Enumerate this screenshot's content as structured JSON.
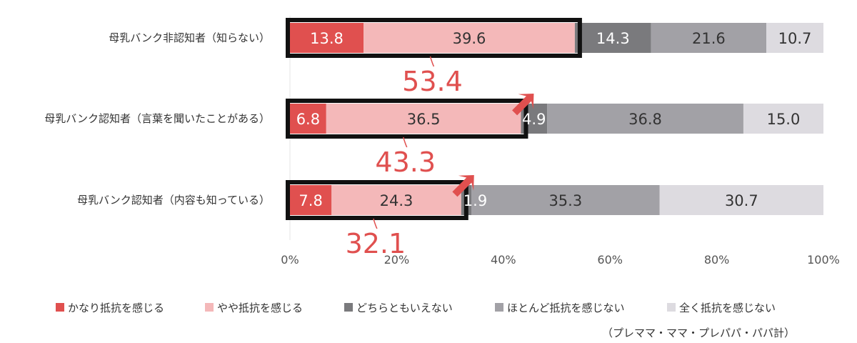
{
  "chart_data": {
    "type": "bar",
    "orientation": "horizontal",
    "stacked": true,
    "normalized": true,
    "categories": [
      "母乳バンク非認知者（知らない）",
      "母乳バンク認知者（言葉を聞いたことがある）",
      "母乳バンク認知者（内容も知っている）"
    ],
    "series": [
      {
        "name": "かなり抵抗を感じる",
        "values": [
          13.8,
          6.8,
          7.8
        ],
        "color": "#E0504F"
      },
      {
        "name": "やや抵抗を感じる",
        "values": [
          39.6,
          36.5,
          24.3
        ],
        "color": "#F4B8B9"
      },
      {
        "name": "どちらともいえない",
        "values": [
          14.3,
          4.9,
          1.9
        ],
        "color": "#7A7A7D"
      },
      {
        "name": "ほとんど抵抗を感じない",
        "values": [
          21.6,
          36.8,
          35.3
        ],
        "color": "#A2A1A6"
      },
      {
        "name": "全く抵抗を感じない",
        "values": [
          10.7,
          15.0,
          30.7
        ],
        "color": "#DDDBE0"
      }
    ],
    "value_labels": [
      [
        "13.8",
        "39.6",
        "14.3",
        "21.6",
        "10.7"
      ],
      [
        "6.8",
        "36.5",
        "4.9",
        "36.8",
        "15.0"
      ],
      [
        "7.8",
        "24.3",
        "1.9",
        "35.3",
        "30.7"
      ]
    ],
    "annotations": {
      "sums": [
        "53.4",
        "43.3",
        "32.1"
      ],
      "arrow_color": "#E0504F"
    },
    "xlim": [
      0,
      100
    ],
    "x_ticks": [
      "0%",
      "20%",
      "40%",
      "60%",
      "80%",
      "100%"
    ],
    "grid": false,
    "legend": "bottom",
    "note": "（プレママ・ママ・プレパパ・パパ計）"
  }
}
